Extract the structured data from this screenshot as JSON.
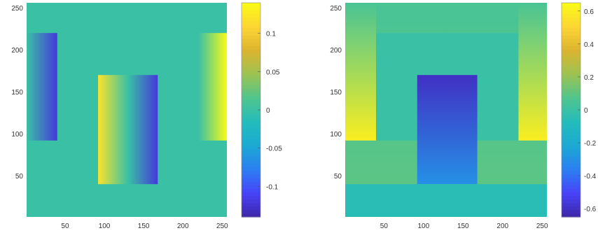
{
  "figure": {
    "colors": {
      "viridis_stops": [
        "#3e26a8",
        "#4743f8",
        "#2c7ef2",
        "#1ba9d3",
        "#23bcbc",
        "#50c58e",
        "#9cc352",
        "#dbb42f",
        "#fdd534",
        "#f9fb15"
      ],
      "axis_text": "#333333",
      "background": "#ffffff"
    }
  },
  "chart_data": [
    {
      "type": "heatmap",
      "title": "",
      "xlabel": "",
      "ylabel": "",
      "xlim": [
        1,
        256
      ],
      "ylim": [
        1,
        256
      ],
      "x_ticks": [
        "50",
        "100",
        "150",
        "200",
        "250"
      ],
      "y_ticks": [
        "50",
        "100",
        "150",
        "200",
        "250"
      ],
      "colorbar": {
        "range": [
          -0.14,
          0.14
        ],
        "ticks": [
          "-0.1",
          "-0.05",
          "0",
          "0.05",
          "0.1"
        ]
      },
      "regions": [
        {
          "x": [
            1,
            256
          ],
          "y": [
            1,
            256
          ],
          "value": 0
        },
        {
          "x": [
            1,
            40
          ],
          "y": [
            92,
            220
          ],
          "value_left": 0,
          "value_right": -0.12
        },
        {
          "x": [
            92,
            130
          ],
          "y": [
            40,
            170
          ],
          "value_left": 0.12,
          "value_right": 0
        },
        {
          "x": [
            130,
            168
          ],
          "y": [
            40,
            170
          ],
          "value_left": 0,
          "value_right": -0.12
        },
        {
          "x": [
            220,
            256
          ],
          "y": [
            92,
            220
          ],
          "value_left": 0,
          "value_right": 0.14
        }
      ]
    },
    {
      "type": "heatmap",
      "title": "",
      "xlabel": "",
      "ylabel": "",
      "xlim": [
        1,
        256
      ],
      "ylim": [
        1,
        256
      ],
      "x_ticks": [
        "50",
        "100",
        "150",
        "200",
        "250"
      ],
      "y_ticks": [
        "50",
        "100",
        "150",
        "200",
        "250"
      ],
      "colorbar": {
        "range": [
          -0.65,
          0.65
        ],
        "ticks": [
          "-0.6",
          "-0.4",
          "-0.2",
          "0",
          "0.2",
          "0.4",
          "0.6"
        ]
      },
      "regions": [
        {
          "x": [
            1,
            256
          ],
          "y": [
            1,
            256
          ],
          "value_top": 0.05,
          "value_bottom": 0.1
        },
        {
          "x": [
            1,
            40
          ],
          "y": [
            92,
            256
          ],
          "value_top": 0.05,
          "value_bottom": 0.6
        },
        {
          "x": [
            220,
            256
          ],
          "y": [
            92,
            256
          ],
          "value_top": 0.05,
          "value_bottom": 0.6
        },
        {
          "x": [
            40,
            220
          ],
          "y": [
            92,
            220
          ],
          "value": 0
        },
        {
          "x": [
            92,
            168
          ],
          "y": [
            40,
            170
          ],
          "value_top": -0.6,
          "value_bottom": -0.3
        },
        {
          "x": [
            1,
            256
          ],
          "y": [
            1,
            40
          ],
          "value": -0.05
        }
      ]
    }
  ]
}
